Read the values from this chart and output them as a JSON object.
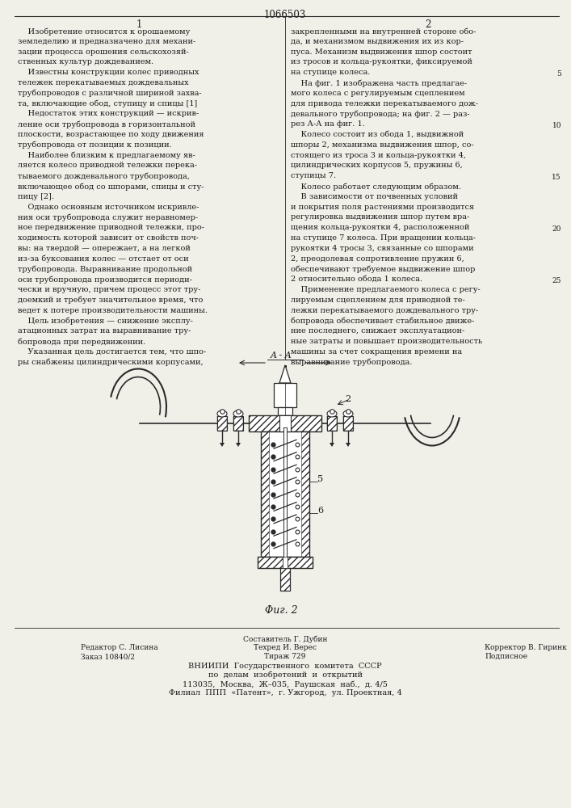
{
  "patent_number": "1066503",
  "col1_header": "1",
  "col2_header": "2",
  "col1_text": [
    "    Изобретение относится к орошаемому",
    "земледелию и предназначено для механи-",
    "зации процесса орошения сельскохозяй-",
    "ственных культур дождеванием.",
    "    Известны конструкции колес приводных",
    "тележек перекатываемых дождевальных",
    "трубопроводов с различной шириной захва-",
    "та, включающие обод, ступицу и спицы [1]",
    "    Недостаток этих конструкций — искрив-",
    "ление оси трубопровода в горизонтальной",
    "плоскости, возрастающее по ходу движения",
    "трубопровода от позиции к позиции.",
    "    Наиболее близким к предлагаемому яв-",
    "ляется колесо приводной тележки перека-",
    "тываемого дождевального трубопровода,",
    "включающее обод со шпорами, спицы и сту-",
    "пицу [2].",
    "    Однако основным источником искривле-",
    "ния оси трубопровода служит неравномер-",
    "ное передвижение приводной тележки, про-",
    "ходимость которой зависит от свойств поч-",
    "вы: на твердой — опережает, а на легкой",
    "из-за буксования колес — отстает от оси",
    "трубопровода. Выравнивание продольной",
    "оси трубопровода производится периоди-",
    "чески и вручную, причем процесс этот тру-",
    "доемкий и требует значительное время, что",
    "ведет к потере производительности машины.",
    "    Цель изобретения — снижение эксплу-",
    "атационных затрат на выравнивание тру-",
    "бопровода при передвижении.",
    "    Указанная цель достигается тем, что шпо-",
    "ры снабжены цилиндрическими корпусами,"
  ],
  "col2_text": [
    "закрепленными на внутренней стороне обо-",
    "да, и механизмом выдвижения их из кор-",
    "пуса. Механизм выдвижения шпор состоит",
    "из тросов и кольца-рукоятки, фиксируемой",
    "на ступице колеса.",
    "    На фиг. 1 изображена часть предлагае-",
    "мого колеса с регулируемым сцеплением",
    "для привода тележки перекатываемого дож-",
    "девального трубопровода; на фиг. 2 — раз-",
    "рез А-А на фиг. 1.",
    "    Колесо состоит из обода 1, выдвижной",
    "шпоры 2, механизма выдвижения шпор, со-",
    "стоящего из троса 3 и кольца-рукоятки 4,",
    "цилиндрических корпусов 5, пружины 6,",
    "ступицы 7.",
    "    Колесо работает следующим образом.",
    "    В зависимости от почвенных условий",
    "и покрытия поля растениями производится",
    "регулировка выдвижения шпор путем вра-",
    "щения кольца-рукоятки 4, расположенной",
    "на ступице 7 колеса. При вращении кольца-",
    "рукоятки 4 тросы 3, связанные со шпорами",
    "2, преодолевая сопротивление пружин 6,",
    "обеспечивают требуемое выдвижение шпор",
    "2 относительно обода 1 колеса.",
    "    Применение предлагаемого колеса с регу-",
    "лируемым сцеплением для приводной те-",
    "лежки перекатываемого дождевального тру-",
    "бопровода обеспечивает стабильное движе-",
    "ние последнего, снижает эксплуатацион-",
    "ные затраты и повышает производительность",
    "машины за счет сокращения времени на",
    "выравнивание трубопровода."
  ],
  "fig_label": "Φиг. 2",
  "section_label": "A - A",
  "footer_line0": "Составитель Г. Дубин",
  "footer_editor": "Редактор С. Лисина",
  "footer_tech": "Техред И. Верес",
  "footer_corr": "Корректор В. Гиринк",
  "footer_order": "Заказ 10840/2",
  "footer_tirazh": "Тираж 729",
  "footer_podp": "Подписное",
  "footer_vniip1": "ВНИИПИ  Государственного  комитета  СССР",
  "footer_vniip2": "по  делам  изобретений  и  открытий",
  "footer_addr1": "113035,  Москва,  Ж–035,  Раушская  наб.,  д. 4/5",
  "footer_addr2": "Филиал  ППП  «Патент»,  г. Ужгород,  ул. Проектная, 4",
  "bg_color": "#f0efe8",
  "text_color": "#1a1a1a",
  "line_color": "#2a2a2a"
}
